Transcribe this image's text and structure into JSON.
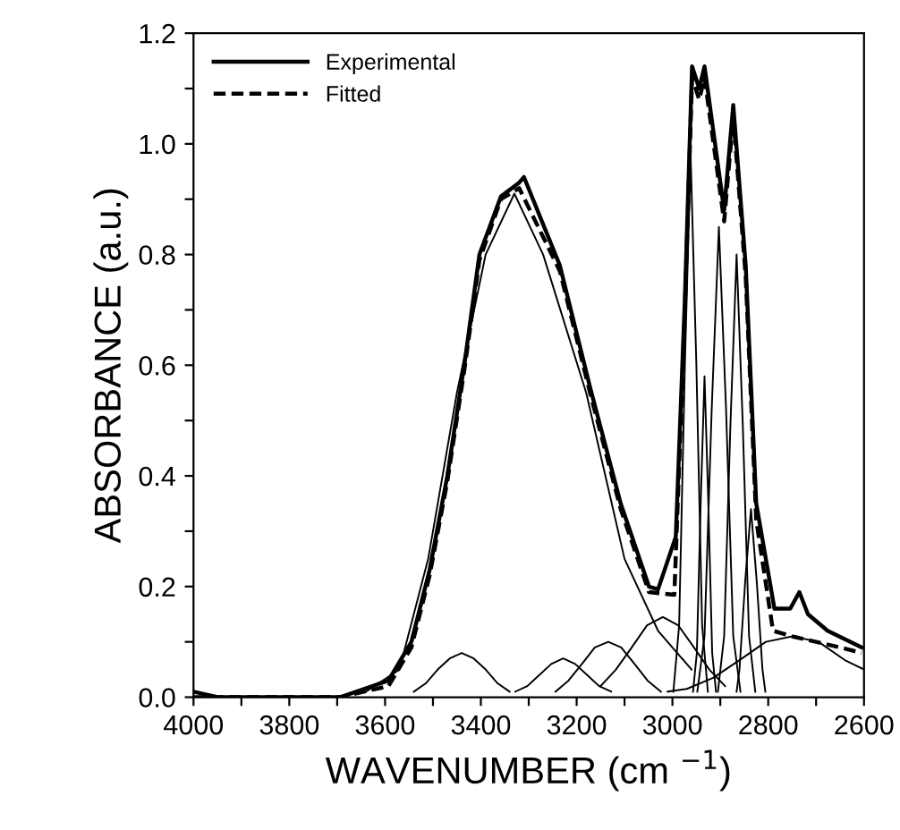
{
  "chart_data": {
    "type": "line",
    "xlabel": "WAVENUMBER (cm $^{−1}$)",
    "ylabel": "ABSORBANCE (a.u.)",
    "xlim": [
      4000,
      2600
    ],
    "ylim": [
      0,
      1.2
    ],
    "xticks": [
      4000,
      {
        "value": 3900,
        "label": null
      },
      3800,
      {
        "value": 3700,
        "label": null
      },
      3600,
      {
        "value": 3500,
        "label": null
      },
      3400,
      {
        "value": 3300,
        "label": null
      },
      3200,
      {
        "value": 3100,
        "label": null
      },
      3000,
      {
        "value": 2900,
        "label": null
      },
      2800,
      {
        "value": 2700,
        "label": null
      },
      2600
    ],
    "yticks": [
      {
        "value": 0,
        "label": "0.0"
      },
      {
        "value": 0.1,
        "label": null
      },
      0.2,
      {
        "value": 0.3,
        "label": null
      },
      0.4,
      {
        "value": 0.5,
        "label": null
      },
      0.6,
      {
        "value": 0.7,
        "label": null
      },
      0.8,
      {
        "value": 0.9,
        "label": null
      },
      {
        "value": 1,
        "label": "1.0"
      },
      {
        "value": 1.1,
        "label": null
      },
      1.2
    ],
    "grid": false,
    "legend": "top left",
    "marker": "none",
    "series": [
      {
        "name": "Experimental",
        "color": "#000000",
        "line_style": "solid",
        "x": [
          4000,
          3950,
          3900,
          3800,
          3694,
          3593,
          3545,
          3507,
          3470,
          3433,
          3403,
          3358,
          3320,
          3310,
          3235,
          3172,
          3108,
          3049,
          3030,
          2993,
          2974,
          2959,
          2944,
          2933,
          2892,
          2873,
          2847,
          2825,
          2787,
          2754,
          2735,
          2717,
          2676,
          2605
        ],
        "values": [
          0.01,
          0.0,
          0.0,
          0.0,
          0.0,
          0.03,
          0.1,
          0.23,
          0.4,
          0.61,
          0.8,
          0.905,
          0.93,
          0.94,
          0.78,
          0.56,
          0.35,
          0.2,
          0.195,
          0.29,
          0.72,
          1.14,
          1.1,
          1.14,
          0.88,
          1.07,
          0.78,
          0.35,
          0.16,
          0.16,
          0.19,
          0.15,
          0.12,
          0.09
        ]
      },
      {
        "name": "Fitted",
        "color": "#000000",
        "line_style": "dashed",
        "x": [
          4000,
          3900,
          3800,
          3694,
          3593,
          3545,
          3507,
          3470,
          3433,
          3403,
          3358,
          3320,
          3235,
          3172,
          3108,
          3049,
          2996,
          2974,
          2959,
          2944,
          2933,
          2892,
          2873,
          2847,
          2825,
          2790,
          2750,
          2700,
          2650,
          2605
        ],
        "values": [
          0.0,
          0.0,
          0.0,
          0.0,
          0.02,
          0.09,
          0.22,
          0.39,
          0.6,
          0.79,
          0.9,
          0.92,
          0.77,
          0.55,
          0.34,
          0.19,
          0.185,
          0.7,
          1.12,
          1.08,
          1.12,
          0.86,
          1.05,
          0.76,
          0.32,
          0.12,
          0.11,
          0.1,
          0.09,
          0.08
        ]
      },
      {
        "color": "#000000",
        "line_style": "solid",
        "x": [
          3640,
          3570,
          3510,
          3450,
          3390,
          3330,
          3270,
          3180,
          3100,
          3030,
          2960
        ],
        "values": [
          0.01,
          0.05,
          0.25,
          0.55,
          0.8,
          0.91,
          0.8,
          0.55,
          0.25,
          0.12,
          0.05
        ]
      },
      {
        "color": "#000000",
        "line_style": "solid",
        "x": [
          3540,
          3515,
          3490,
          3465,
          3440,
          3415,
          3390,
          3365,
          3340
        ],
        "values": [
          0.01,
          0.025,
          0.05,
          0.07,
          0.08,
          0.07,
          0.05,
          0.025,
          0.01
        ]
      },
      {
        "color": "#000000",
        "line_style": "solid",
        "x": [
          3328,
          3303,
          3278,
          3253,
          3228,
          3203,
          3178,
          3153,
          3128
        ],
        "values": [
          0.01,
          0.02,
          0.04,
          0.06,
          0.07,
          0.06,
          0.04,
          0.02,
          0.01
        ]
      },
      {
        "color": "#000000",
        "line_style": "solid",
        "x": [
          3244,
          3217,
          3189,
          3162,
          3134,
          3107,
          3079,
          3052,
          3024
        ],
        "values": [
          0.01,
          0.03,
          0.06,
          0.09,
          0.1,
          0.09,
          0.06,
          0.03,
          0.01
        ]
      },
      {
        "color": "#000000",
        "line_style": "solid",
        "x": [
          3150,
          3118,
          3085,
          3053,
          3020,
          2988,
          2955,
          2923,
          2890
        ],
        "values": [
          0.02,
          0.05,
          0.09,
          0.13,
          0.145,
          0.13,
          0.09,
          0.05,
          0.02
        ]
      },
      {
        "color": "#000000",
        "line_style": "solid",
        "x": [
          2998,
          2986,
          2974,
          2962,
          2950,
          2938,
          2926
        ],
        "values": [
          0.01,
          0.13,
          0.6,
          0.98,
          0.6,
          0.13,
          0.01
        ]
      },
      {
        "color": "#000000",
        "line_style": "solid",
        "x": [
          2957,
          2949,
          2941,
          2933,
          2925,
          2917,
          2909
        ],
        "values": [
          0.01,
          0.08,
          0.35,
          0.58,
          0.35,
          0.08,
          0.01
        ]
      },
      {
        "color": "#000000",
        "line_style": "solid",
        "x": [
          2948,
          2933,
          2918,
          2903,
          2888,
          2873,
          2858
        ],
        "values": [
          0.01,
          0.11,
          0.52,
          0.85,
          0.52,
          0.11,
          0.01
        ]
      },
      {
        "color": "#000000",
        "line_style": "solid",
        "x": [
          2905,
          2892,
          2879,
          2866,
          2853,
          2840,
          2827
        ],
        "values": [
          0.01,
          0.11,
          0.49,
          0.8,
          0.49,
          0.11,
          0.01
        ]
      },
      {
        "color": "#000000",
        "line_style": "solid",
        "x": [
          2866,
          2860,
          2848,
          2836,
          2824,
          2812,
          2806
        ],
        "values": [
          0.01,
          0.05,
          0.21,
          0.34,
          0.21,
          0.05,
          0.01
        ]
      },
      {
        "color": "#000000",
        "line_style": "solid",
        "x": [
          3010,
          2970,
          2915,
          2860,
          2805,
          2750,
          2695,
          2640,
          2600
        ],
        "values": [
          0.01,
          0.015,
          0.035,
          0.067,
          0.1,
          0.11,
          0.1,
          0.067,
          0.05
        ]
      }
    ]
  }
}
